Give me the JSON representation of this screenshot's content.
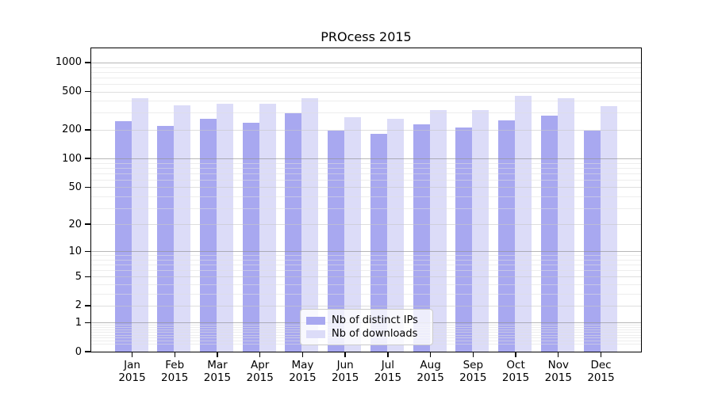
{
  "title": "PROcess 2015",
  "colors": {
    "background": "#ffffff",
    "axis": "#000000",
    "grid_major": "#b6b6b6",
    "grid_mid": "#dedede",
    "grid_minor": "#ededed"
  },
  "chart_data": {
    "type": "bar",
    "title": "PROcess 2015",
    "categories": [
      "Jan",
      "Feb",
      "Mar",
      "Apr",
      "May",
      "Jun",
      "Jul",
      "Aug",
      "Sep",
      "Oct",
      "Nov",
      "Dec"
    ],
    "x_tick_year": "2015",
    "series": [
      {
        "name": "Nb of distinct IPs",
        "color": "#a8a8f0",
        "values": [
          244,
          220,
          262,
          237,
          295,
          194,
          180,
          226,
          212,
          249,
          279,
          194
        ]
      },
      {
        "name": "Nb of downloads",
        "color": "#dcdcf8",
        "values": [
          428,
          361,
          375,
          373,
          424,
          272,
          260,
          320,
          322,
          453,
          426,
          354
        ]
      }
    ],
    "xlabel": "",
    "ylabel": "",
    "y_scale": "log1p",
    "y_ticks": [
      0,
      1,
      2,
      5,
      10,
      20,
      50,
      100,
      200,
      500,
      1000
    ],
    "ylim": [
      0,
      1434
    ],
    "grid": true,
    "legend": {
      "position": "lower-center-inside",
      "items": [
        "Nb of distinct IPs",
        "Nb of downloads"
      ]
    }
  }
}
